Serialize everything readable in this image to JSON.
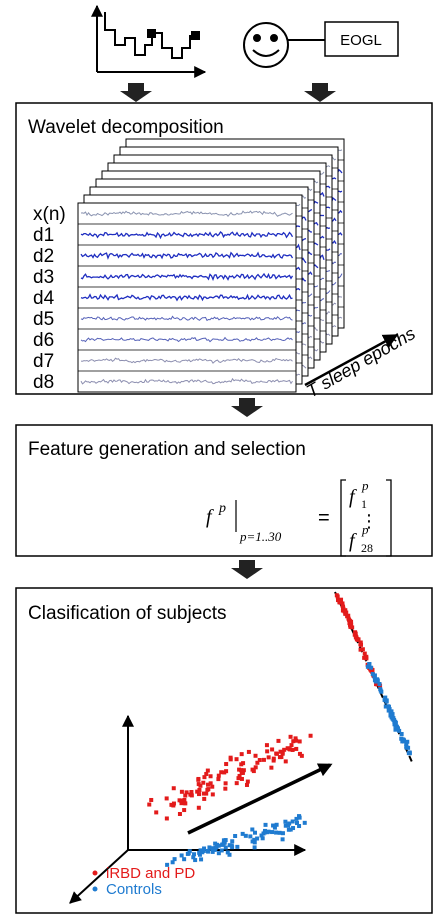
{
  "top": {
    "eog_label": "EOGL"
  },
  "wavelet": {
    "title": "Wavelet decomposition",
    "rows": [
      "x(n)",
      "d1",
      "d2",
      "d3",
      "d4",
      "d5",
      "d6",
      "d7",
      "d8"
    ],
    "epochs_label": "T sleep epochs"
  },
  "features": {
    "title": "Feature generation and selection",
    "formula": {
      "lhs": "f",
      "lhs_sup": "p",
      "range": "p=1..30",
      "equals": "=",
      "top": {
        "base": "f",
        "sub": "1",
        "sup": "p"
      },
      "dots": "⋮",
      "bottom": {
        "base": "f",
        "sub": "28",
        "sup": "p"
      }
    }
  },
  "classification": {
    "title": "Clasification of subjects",
    "legend": [
      {
        "name": "iRBD and PD",
        "color": "#e31b1b"
      },
      {
        "name": "Controls",
        "color": "#1f7bd0"
      }
    ]
  }
}
